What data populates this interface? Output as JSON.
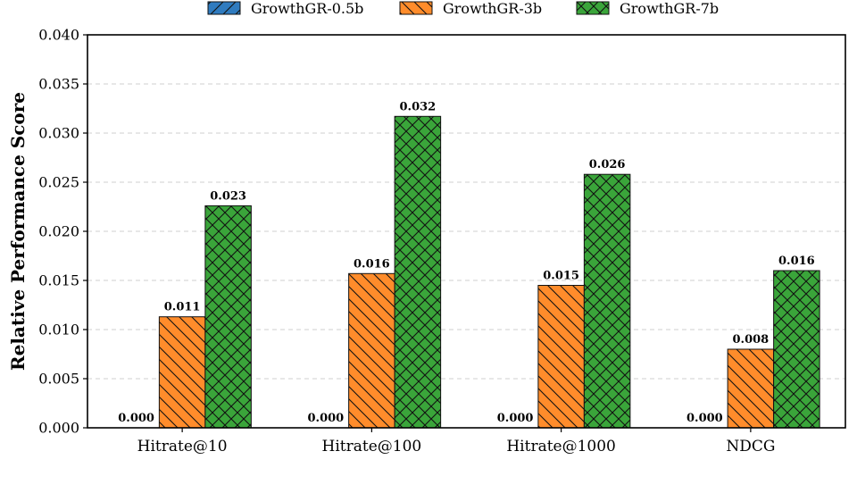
{
  "chart_data": {
    "type": "bar",
    "title": "",
    "xlabel": "",
    "ylabel": "Relative Performance Score",
    "ylim": [
      0,
      0.04
    ],
    "yticks": [
      "0.000",
      "0.005",
      "0.010",
      "0.015",
      "0.020",
      "0.025",
      "0.030",
      "0.035",
      "0.040"
    ],
    "grid": true,
    "legend_position": "top-center",
    "categories": [
      "Hitrate@10",
      "Hitrate@100",
      "Hitrate@1000",
      "NDCG"
    ],
    "series": [
      {
        "name": "GrowthGR-0.5b",
        "color": "#2f7bbf",
        "hatch": "diagonal-forward",
        "values": [
          0.0,
          0.0,
          0.0,
          0.0
        ],
        "labels": [
          "0.000",
          "0.000",
          "0.000",
          "0.000"
        ]
      },
      {
        "name": "GrowthGR-3b",
        "color": "#ff8c2b",
        "hatch": "diagonal-back",
        "values": [
          0.0113,
          0.0157,
          0.0145,
          0.008
        ],
        "labels": [
          "0.011",
          "0.016",
          "0.015",
          "0.008"
        ]
      },
      {
        "name": "GrowthGR-7b",
        "color": "#3aa53a",
        "hatch": "cross",
        "values": [
          0.0226,
          0.0317,
          0.0258,
          0.016
        ],
        "labels": [
          "0.023",
          "0.032",
          "0.026",
          "0.016"
        ]
      }
    ]
  }
}
